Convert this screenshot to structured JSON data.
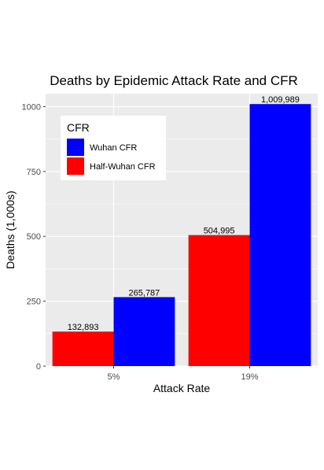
{
  "chart_data": {
    "type": "bar",
    "title": "Deaths by Epidemic Attack Rate and CFR",
    "xlabel": "Attack Rate",
    "ylabel": "Deaths (1,000s)",
    "categories": [
      "5%",
      "19%"
    ],
    "series": [
      {
        "name": "Half-Wuhan CFR",
        "color": "#ff0000",
        "values": [
          132.893,
          504.995
        ],
        "labels": [
          "132,893",
          "504,995"
        ]
      },
      {
        "name": "Wuhan CFR",
        "color": "#0000ff",
        "values": [
          265.787,
          1009.989
        ],
        "labels": [
          "265,787",
          "1,009,989"
        ]
      }
    ],
    "ylim": [
      0,
      1050
    ],
    "yticks": [
      0,
      250,
      500,
      750,
      1000
    ],
    "ytick_labels": [
      "0",
      "250",
      "500",
      "750",
      "1000"
    ],
    "grid": true,
    "legend": {
      "title": "CFR",
      "placement": "top-left",
      "order": [
        "Wuhan CFR",
        "Half-Wuhan CFR"
      ]
    }
  }
}
